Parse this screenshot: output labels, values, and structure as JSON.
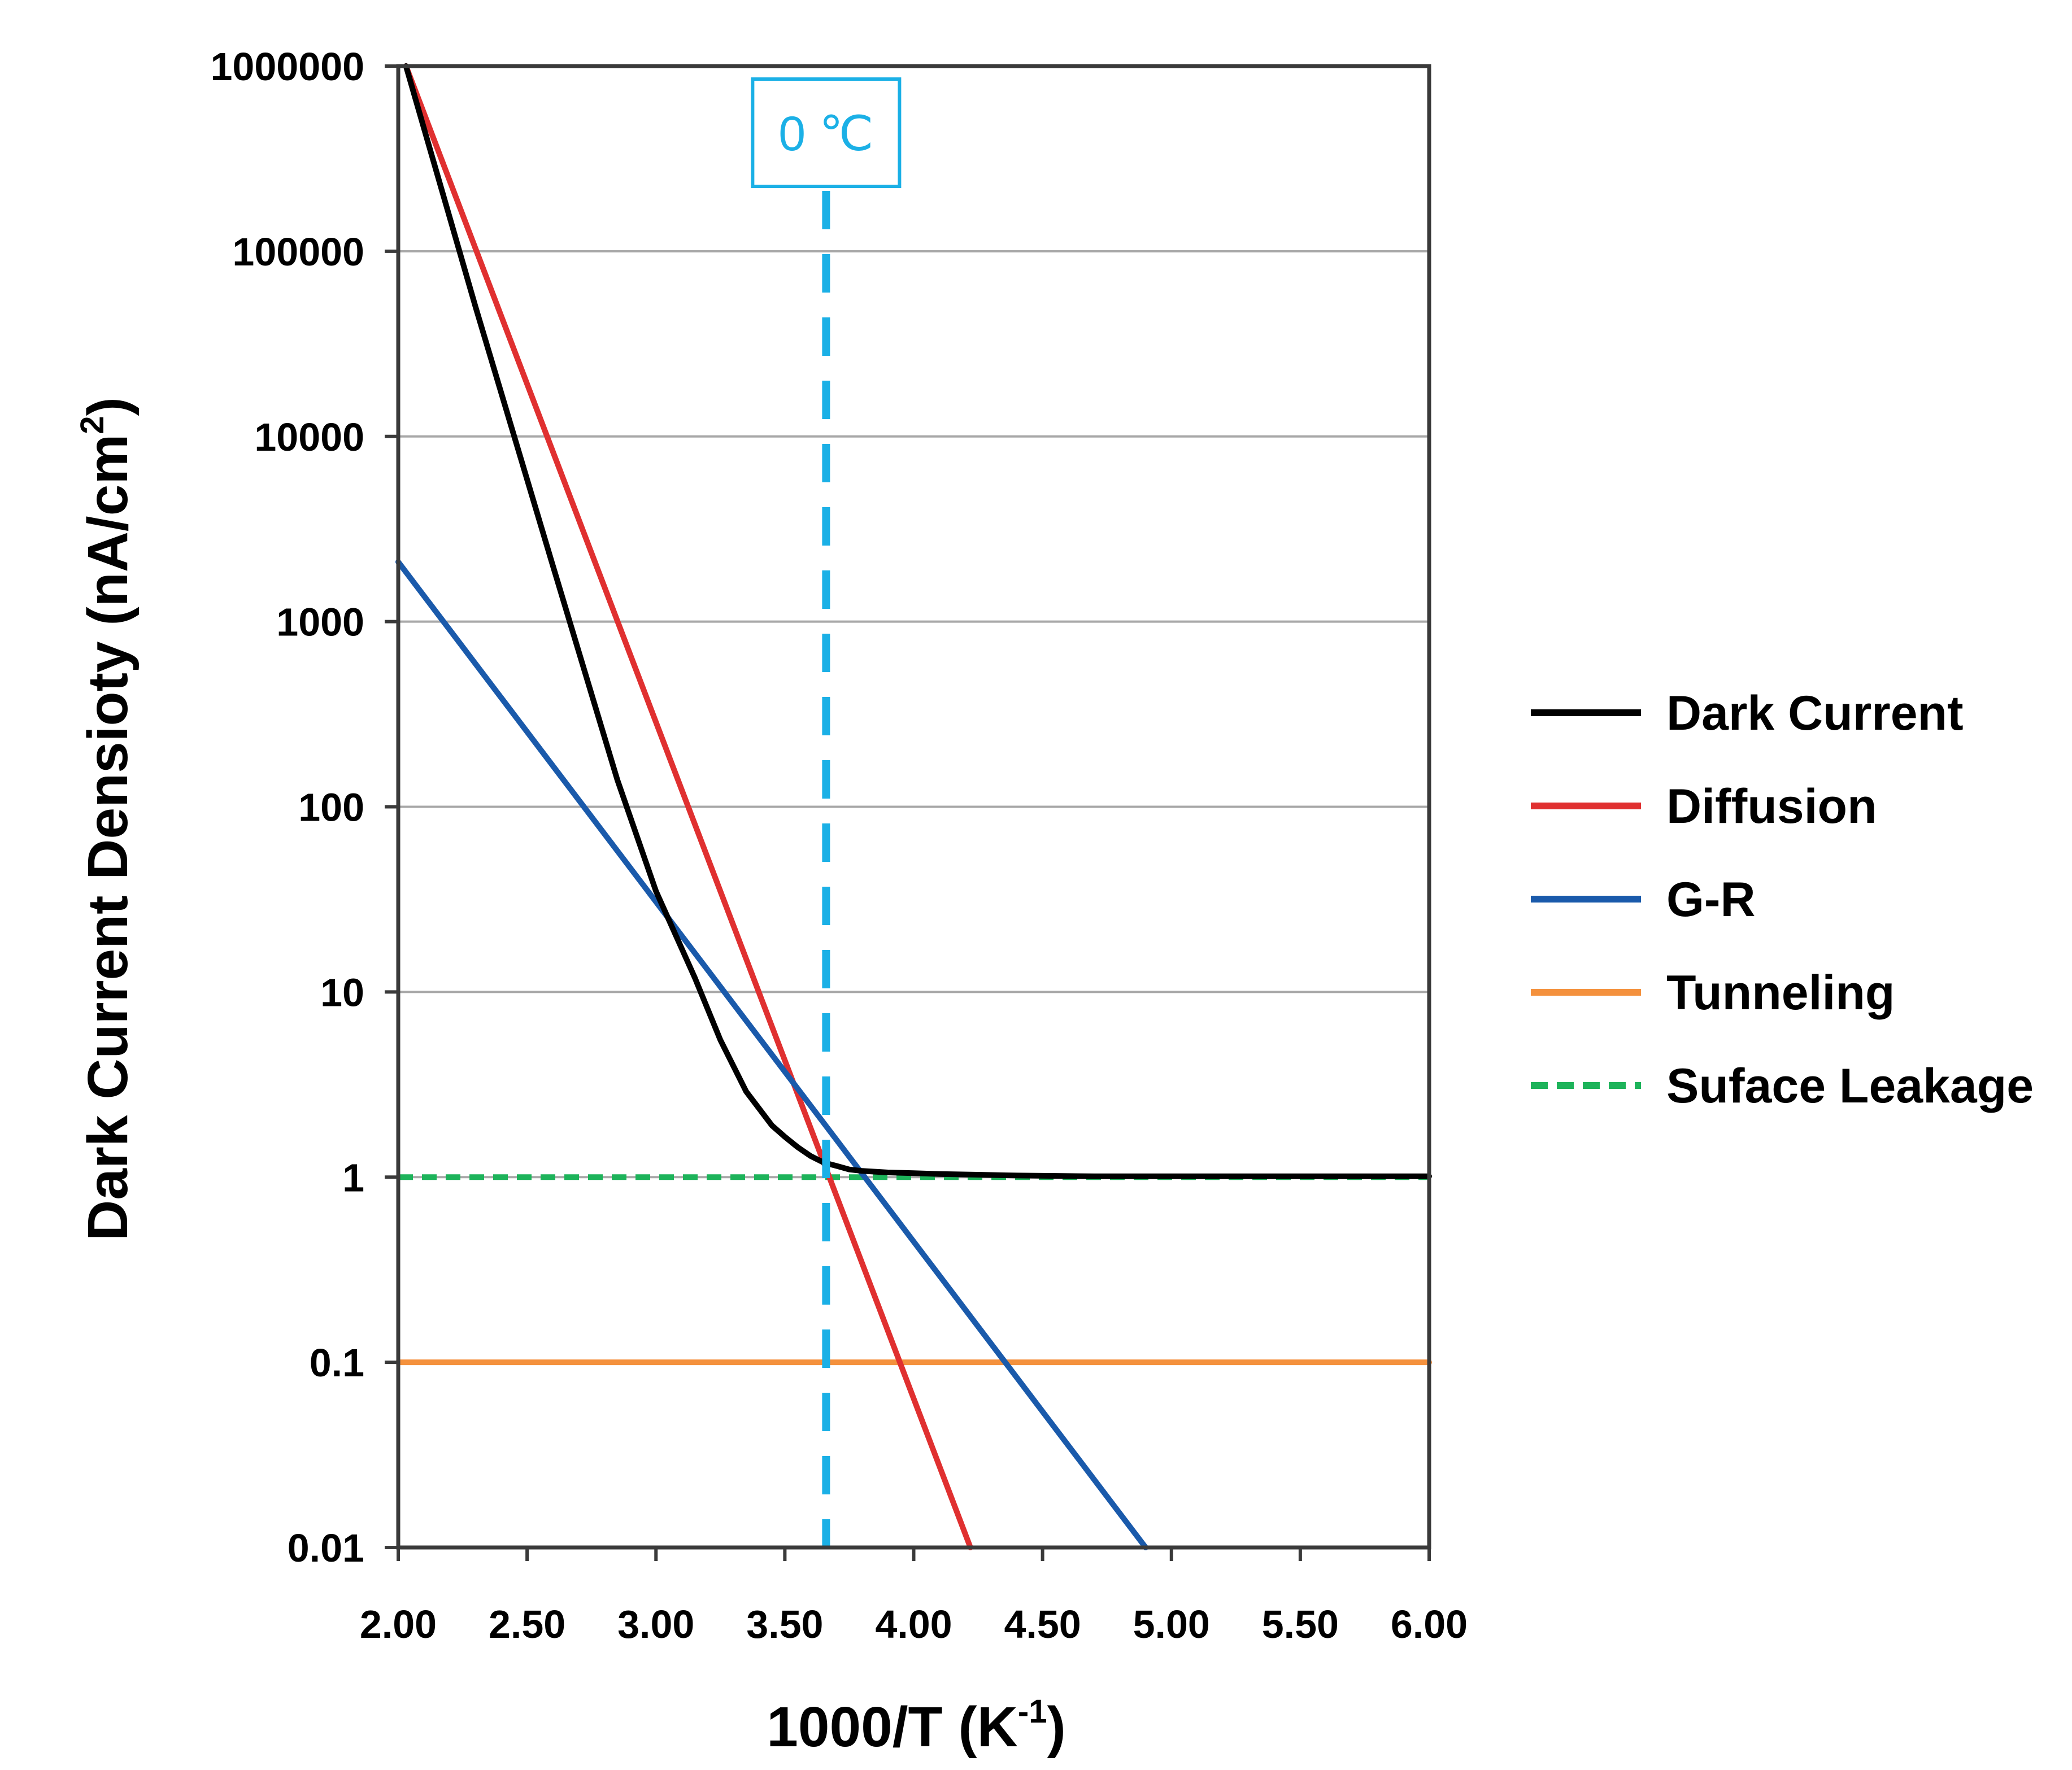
{
  "chart_data": {
    "type": "line",
    "xlabel": "1000/T (K",
    "xlabel_sup": "-1",
    "xlabel_end": ")",
    "ylabel": "Dark Current Densioty (nA/cm",
    "ylabel_sup": "2",
    "ylabel_end": ")",
    "xlim": [
      2.0,
      6.0
    ],
    "ylim": [
      0.01,
      1000000
    ],
    "y_scale": "log",
    "x_ticks": [
      2.0,
      2.5,
      3.0,
      3.5,
      4.0,
      4.5,
      5.0,
      5.5,
      6.0
    ],
    "x_tick_labels": [
      "2.00",
      "2.50",
      "3.00",
      "3.50",
      "4.00",
      "4.50",
      "5.00",
      "5.50",
      "6.00"
    ],
    "y_ticks": [
      0.01,
      0.1,
      1,
      10,
      100,
      1000,
      10000,
      100000,
      1000000
    ],
    "y_tick_labels": [
      "0.01",
      "0.1",
      "1",
      "10",
      "100",
      "1000",
      "10000",
      "100000",
      "1000000"
    ],
    "grid": "horizontal",
    "legend_position": "right",
    "marker": {
      "label": "0 ℃",
      "x": 3.66,
      "color": "#1BB0E6"
    },
    "series": [
      {
        "name": "Dark Current",
        "color": "#000000",
        "style": "solid",
        "x": [
          2.03,
          2.3,
          2.6,
          2.85,
          3.0,
          3.15,
          3.25,
          3.35,
          3.45,
          3.5,
          3.55,
          3.6,
          3.65,
          3.7,
          3.75,
          3.8,
          3.9,
          4.0,
          4.1,
          4.25,
          4.4,
          4.7,
          5.0,
          5.5,
          6.0
        ],
        "y": [
          1000000,
          50000,
          2000,
          140,
          35,
          12,
          5.5,
          2.9,
          1.9,
          1.65,
          1.45,
          1.3,
          1.2,
          1.15,
          1.1,
          1.08,
          1.06,
          1.05,
          1.04,
          1.03,
          1.02,
          1.01,
          1.01,
          1.01,
          1.01
        ]
      },
      {
        "name": "Diffusion",
        "color": "#E03030",
        "style": "solid",
        "x": [
          2.03,
          4.22
        ],
        "y": [
          1000000,
          0.01
        ]
      },
      {
        "name": "G-R",
        "color": "#1A5AAB",
        "style": "solid",
        "x": [
          2.0,
          4.9
        ],
        "y": [
          2100,
          0.01
        ]
      },
      {
        "name": "Tunneling",
        "color": "#F4913D",
        "style": "solid",
        "x": [
          2.0,
          6.0
        ],
        "y": [
          0.1,
          0.1
        ]
      },
      {
        "name": "Suface Leakage",
        "color": "#1DB35A",
        "style": "dashed",
        "x": [
          2.0,
          6.0
        ],
        "y": [
          1,
          1
        ]
      }
    ]
  }
}
